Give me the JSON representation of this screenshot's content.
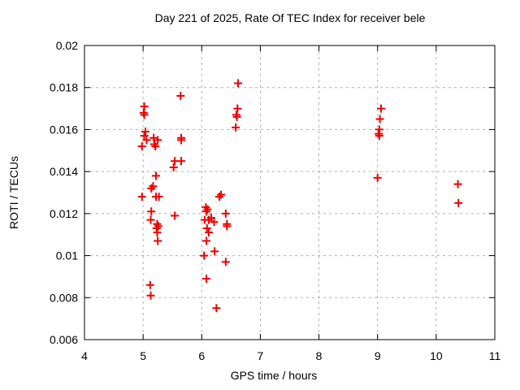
{
  "chart_data": {
    "type": "scatter",
    "title": "Day 221 of 2025, Rate Of TEC Index for receiver bele",
    "xlabel": "GPS time / hours",
    "ylabel": "ROTI / TECUs",
    "xlim": [
      4,
      11
    ],
    "ylim": [
      0.006,
      0.02
    ],
    "grid": true,
    "legend_position": "none",
    "marker": "plus",
    "colors": {
      "marker": "#ee0000",
      "grid": "#b0b0b0",
      "axis": "#000000",
      "background": "#ffffff"
    },
    "x_ticks": [
      {
        "v": 4,
        "label": "4"
      },
      {
        "v": 5,
        "label": "5"
      },
      {
        "v": 6,
        "label": "6"
      },
      {
        "v": 7,
        "label": "7"
      },
      {
        "v": 8,
        "label": "8"
      },
      {
        "v": 9,
        "label": "9"
      },
      {
        "v": 10,
        "label": "10"
      },
      {
        "v": 11,
        "label": "11"
      }
    ],
    "y_ticks": [
      {
        "v": 0.006,
        "label": "0.006"
      },
      {
        "v": 0.008,
        "label": "0.008"
      },
      {
        "v": 0.01,
        "label": "0.01"
      },
      {
        "v": 0.012,
        "label": "0.012"
      },
      {
        "v": 0.014,
        "label": "0.014"
      },
      {
        "v": 0.016,
        "label": "0.016"
      },
      {
        "v": 0.018,
        "label": "0.018"
      },
      {
        "v": 0.02,
        "label": "0.02"
      }
    ],
    "series": [
      {
        "name": "ROTI",
        "points": [
          [
            5.02,
            0.0171
          ],
          [
            5.01,
            0.0168
          ],
          [
            5.02,
            0.0167
          ],
          [
            5.04,
            0.0159
          ],
          [
            5.02,
            0.0157
          ],
          [
            5.06,
            0.0155
          ],
          [
            4.98,
            0.0152
          ],
          [
            4.98,
            0.0128
          ],
          [
            5.18,
            0.0156
          ],
          [
            5.25,
            0.0155
          ],
          [
            5.19,
            0.0153
          ],
          [
            5.21,
            0.0152
          ],
          [
            5.22,
            0.0138
          ],
          [
            5.17,
            0.0133
          ],
          [
            5.14,
            0.0132
          ],
          [
            5.22,
            0.0128
          ],
          [
            5.27,
            0.0128
          ],
          [
            5.14,
            0.0121
          ],
          [
            5.13,
            0.0117
          ],
          [
            5.24,
            0.0115
          ],
          [
            5.26,
            0.0114
          ],
          [
            5.23,
            0.0113
          ],
          [
            5.24,
            0.0111
          ],
          [
            5.25,
            0.0107
          ],
          [
            5.12,
            0.0086
          ],
          [
            5.13,
            0.0081
          ],
          [
            5.64,
            0.0176
          ],
          [
            5.65,
            0.0156
          ],
          [
            5.65,
            0.0155
          ],
          [
            5.65,
            0.0145
          ],
          [
            5.54,
            0.0145
          ],
          [
            5.52,
            0.0142
          ],
          [
            5.54,
            0.0119
          ],
          [
            6.33,
            0.0129
          ],
          [
            6.3,
            0.0128
          ],
          [
            6.07,
            0.0123
          ],
          [
            6.1,
            0.0122
          ],
          [
            6.08,
            0.0121
          ],
          [
            6.41,
            0.012
          ],
          [
            6.05,
            0.0117
          ],
          [
            6.12,
            0.0117
          ],
          [
            6.16,
            0.0118
          ],
          [
            6.21,
            0.0116
          ],
          [
            6.43,
            0.0115
          ],
          [
            6.43,
            0.0114
          ],
          [
            6.09,
            0.0113
          ],
          [
            6.12,
            0.0111
          ],
          [
            6.08,
            0.0107
          ],
          [
            6.22,
            0.0102
          ],
          [
            6.04,
            0.01
          ],
          [
            6.41,
            0.0097
          ],
          [
            6.08,
            0.0089
          ],
          [
            6.25,
            0.0075
          ],
          [
            6.62,
            0.0182
          ],
          [
            6.61,
            0.017
          ],
          [
            6.59,
            0.0167
          ],
          [
            6.6,
            0.0166
          ],
          [
            6.58,
            0.0161
          ],
          [
            9.06,
            0.017
          ],
          [
            9.04,
            0.0165
          ],
          [
            9.03,
            0.016
          ],
          [
            9.02,
            0.0158
          ],
          [
            9.03,
            0.0157
          ],
          [
            9.0,
            0.0137
          ],
          [
            10.37,
            0.0134
          ],
          [
            10.38,
            0.0125
          ]
        ]
      }
    ]
  }
}
